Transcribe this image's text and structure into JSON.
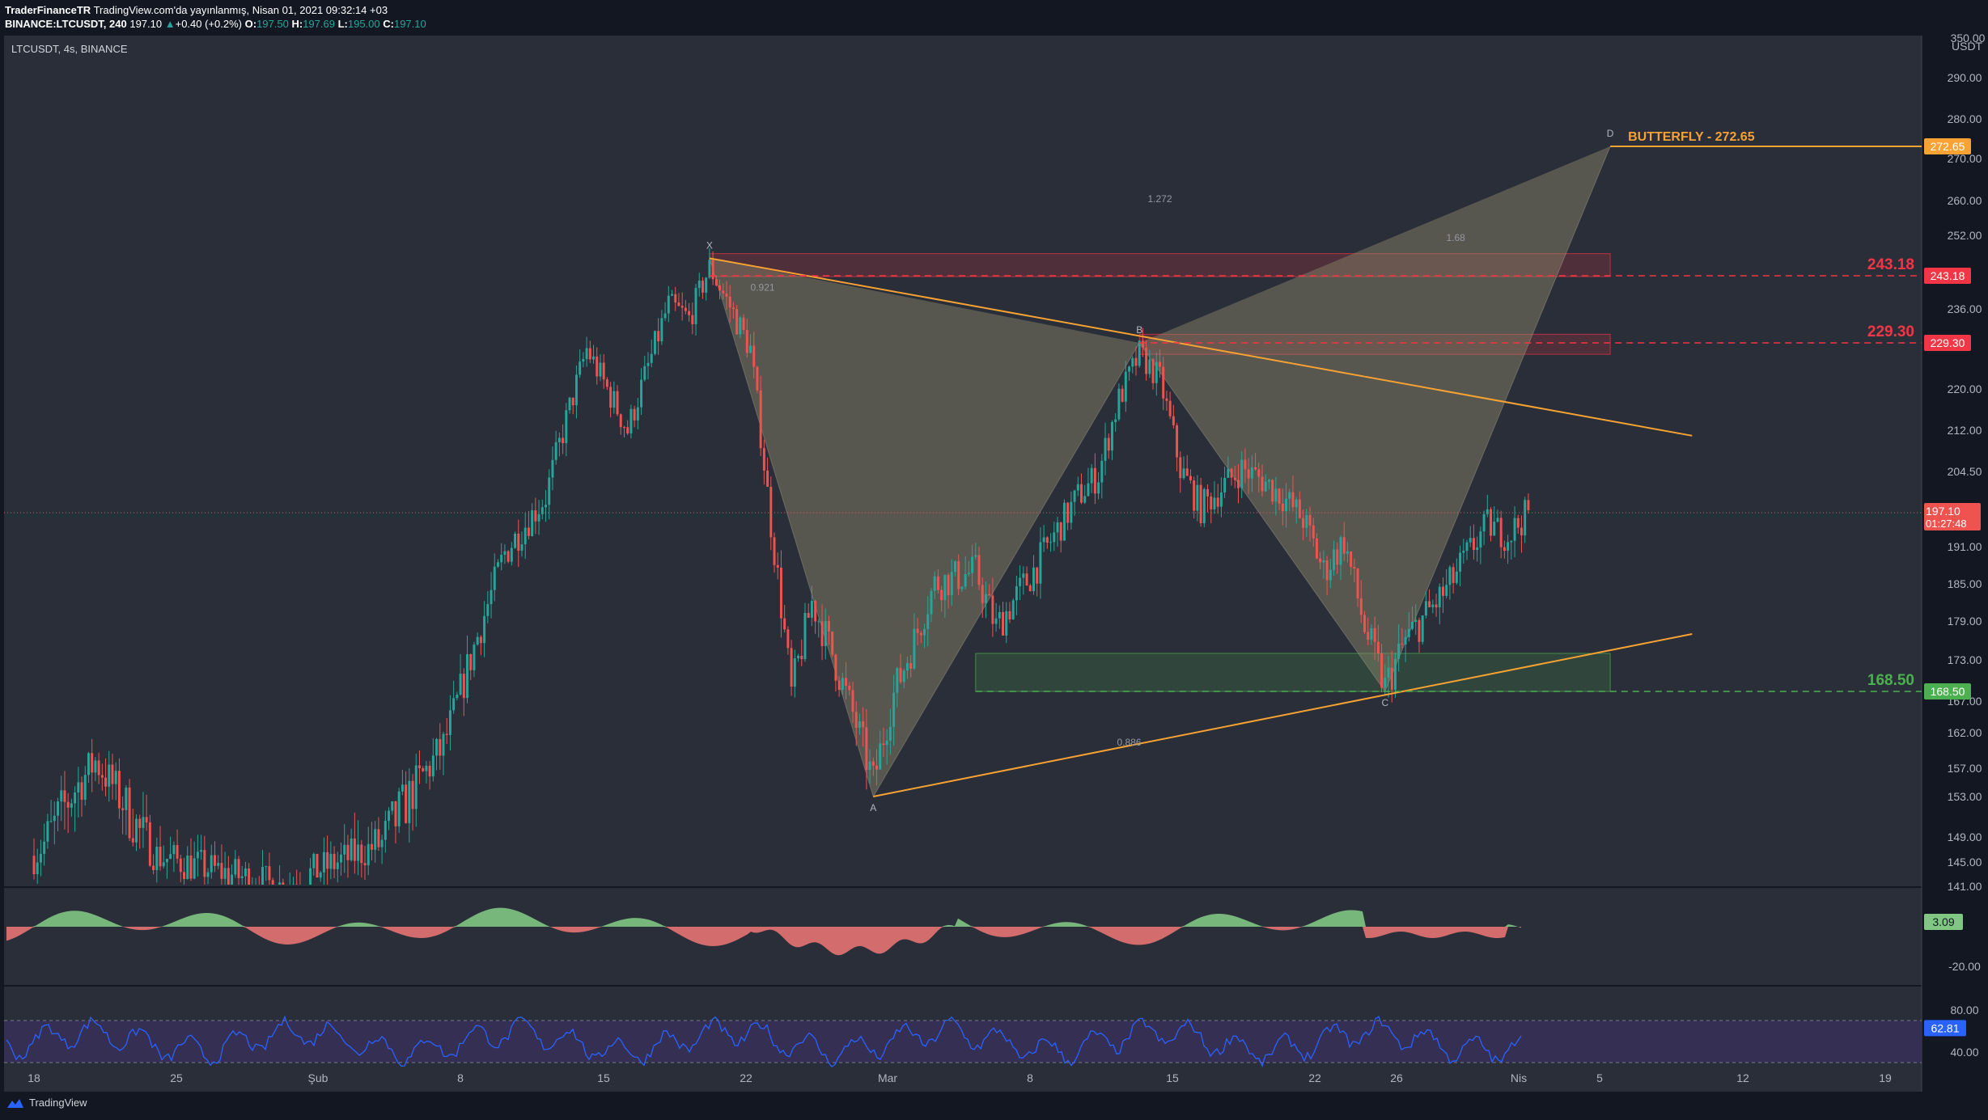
{
  "header": {
    "publisher": "TraderFinanceTR",
    "published_text": "TradingView.com'da yayınlanmış, Nisan 01, 2021 09:32:14 +03",
    "symbol_line": "BINANCE:LTCUSDT, 240",
    "last": "197.10",
    "change": "+0.40 (+0.2%)",
    "o_label": "O:",
    "o": "197.50",
    "h_label": "H:",
    "h": "197.69",
    "l_label": "L:",
    "l": "195.00",
    "c_label": "C:",
    "c": "197.10"
  },
  "pane_title": "LTCUSDT, 4s, BINANCE",
  "footer": {
    "brand": "TradingView"
  },
  "colors": {
    "background": "#131722",
    "pane": "#2a2e39",
    "up": "#26a69a",
    "down": "#ef5350",
    "pattern_line": "#f7a233",
    "pattern_fill": "#8d8a6c",
    "resistance": "#f23645",
    "support": "#4caf50",
    "rsi_line": "#2962ff",
    "rsi_band": "#3a2f5b"
  },
  "chart_data": [
    {
      "type": "candlestick",
      "symbol": "LTCUSDT",
      "exchange": "BINANCE",
      "interval": "4s",
      "currency": "USDT",
      "y_scale_label": "350.00",
      "yticks": [
        "290.00",
        "280.00",
        "270.00",
        "260.00",
        "252.00",
        "243.18",
        "236.00",
        "229.30",
        "220.00",
        "212.00",
        "204.50",
        "197.10",
        "191.00",
        "185.00",
        "179.00",
        "173.00",
        "168.50",
        "167.00",
        "162.00",
        "157.00",
        "153.00",
        "149.00",
        "145.00",
        "141.00"
      ],
      "xticks": [
        "18",
        "25",
        "Şub",
        "8",
        "15",
        "22",
        "Mar",
        "8",
        "15",
        "22",
        "26",
        "Nis",
        "5",
        "12",
        "19"
      ],
      "candles_summary": "4-hour candles from mid-January to 1 April 2021, low near 141, high near 247 in mid-February",
      "key_points": [
        {
          "label": "X",
          "date": "2021-02-20",
          "price": 247.0
        },
        {
          "label": "A",
          "date": "2021-02-28",
          "price": 153.0
        },
        {
          "label": "B",
          "date": "2021-03-13",
          "price": 229.3
        },
        {
          "label": "C",
          "date": "2021-03-25",
          "price": 168.5
        },
        {
          "label": "D",
          "date": "2021-04-05",
          "price": 272.65
        }
      ],
      "ratios": [
        "0.921",
        "1.272",
        "0.886",
        "1.68"
      ],
      "pattern_label": "BUTTERFLY - 272.65",
      "levels": [
        {
          "value": "272.65",
          "label": "BUTTERFLY - 272.65",
          "kind": "target"
        },
        {
          "value": "243.18",
          "kind": "resistance"
        },
        {
          "value": "229.30",
          "kind": "resistance"
        },
        {
          "value": "168.50",
          "kind": "support"
        }
      ],
      "last_price": "197.10",
      "countdown": "01:27:48",
      "trendlines": [
        {
          "from": {
            "date": "2021-02-20",
            "price": 247.0
          },
          "to": {
            "date": "2021-04-09",
            "price": 211.0
          }
        },
        {
          "from": {
            "date": "2021-02-28",
            "price": 153.0
          },
          "to": {
            "date": "2021-04-09",
            "price": 177.0
          }
        }
      ],
      "zones": [
        {
          "kind": "resistance",
          "from_date": "2021-02-20",
          "to_date": "2021-04-05",
          "low": 243.0,
          "high": 248.0
        },
        {
          "kind": "resistance",
          "from_date": "2021-03-13",
          "to_date": "2021-04-05",
          "low": 227.0,
          "high": 231.0
        },
        {
          "kind": "support",
          "from_date": "2021-03-05",
          "to_date": "2021-04-05",
          "low": 168.5,
          "high": 174.0
        }
      ]
    },
    {
      "type": "area",
      "name": "oscillator",
      "last_value": "3.09",
      "ytick": "-20.00"
    },
    {
      "type": "line",
      "name": "rsi",
      "last_value": "62.81",
      "yticks": [
        "80.00",
        "40.00"
      ],
      "band": [
        30,
        70
      ]
    }
  ]
}
